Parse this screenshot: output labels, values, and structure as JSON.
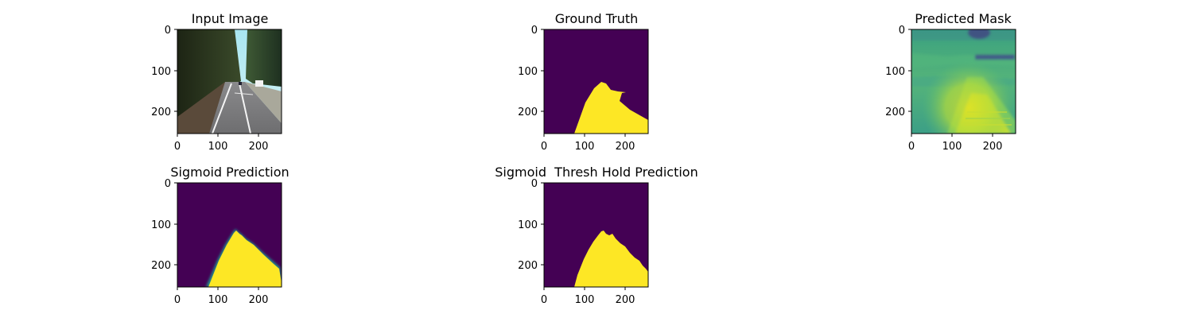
{
  "figure": {
    "panels": [
      {
        "id": "input",
        "title": "Input Image",
        "x_ticks": [
          "0",
          "100",
          "200"
        ],
        "y_ticks": [
          "0",
          "100",
          "200"
        ],
        "content": "road-photo"
      },
      {
        "id": "ground-truth",
        "title": "Ground Truth",
        "x_ticks": [
          "0",
          "100",
          "200"
        ],
        "y_ticks": [
          "0",
          "100",
          "200"
        ],
        "content": "binary-mask"
      },
      {
        "id": "predicted-mask",
        "title": "Predicted Mask",
        "x_ticks": [
          "0",
          "100",
          "200"
        ],
        "y_ticks": [
          "0",
          "100",
          "200"
        ],
        "content": "raw-logits"
      },
      {
        "id": "sigmoid",
        "title": "Sigmoid Prediction",
        "x_ticks": [
          "0",
          "100",
          "200"
        ],
        "y_ticks": [
          "0",
          "100",
          "200"
        ],
        "content": "soft-mask"
      },
      {
        "id": "threshold",
        "title": "Sigmoid  Thresh Hold Prediction",
        "x_ticks": [
          "0",
          "100",
          "200"
        ],
        "y_ticks": [
          "0",
          "100",
          "200"
        ],
        "content": "binary-mask"
      }
    ],
    "colors": {
      "viridis_low": "#440154",
      "viridis_high": "#fde725",
      "viridis_mid": "#21918c",
      "viridis_green": "#5ec962"
    }
  }
}
